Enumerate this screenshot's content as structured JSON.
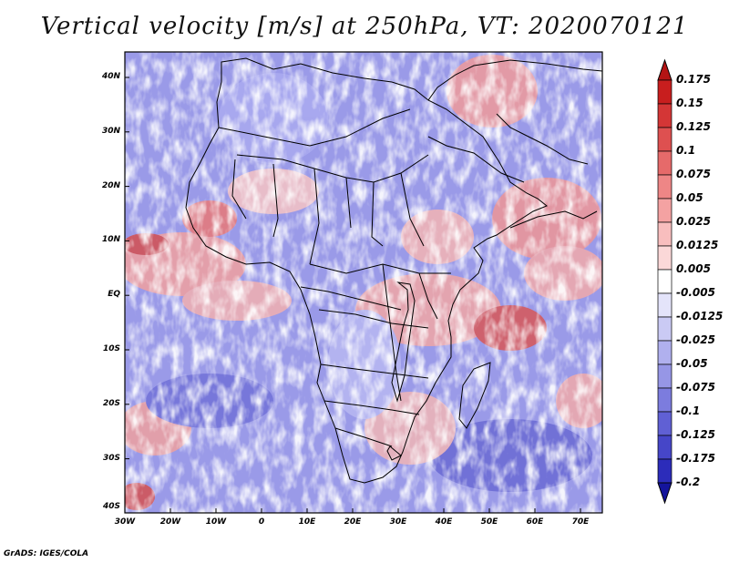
{
  "title": "Vertical velocity [m/s] at 250hPa, VT: 2020070121",
  "credit": "GrADS: IGES/COLA",
  "map": {
    "lat_ticks": [
      "40N",
      "30N",
      "20N",
      "10N",
      "EQ",
      "10S",
      "20S",
      "30S",
      "40S"
    ],
    "lon_ticks": [
      "30W",
      "20W",
      "10W",
      "0",
      "10E",
      "20E",
      "30E",
      "40E",
      "50E",
      "60E",
      "70E"
    ]
  },
  "colorbar": {
    "labels": [
      "0.175",
      "0.15",
      "0.125",
      "0.1",
      "0.075",
      "0.05",
      "0.025",
      "0.0125",
      "0.005",
      "-0.005",
      "-0.0125",
      "-0.025",
      "-0.05",
      "-0.075",
      "-0.1",
      "-0.125",
      "-0.175",
      "-0.2"
    ],
    "colors": [
      "#c81e1e",
      "#d43636",
      "#de5050",
      "#e66a6a",
      "#ee8686",
      "#f4a2a2",
      "#f8bebe",
      "#fbd8d8",
      "#ffffff",
      "#e4e4fa",
      "#cacaf4",
      "#b0b0ee",
      "#9696e6",
      "#7c7cde",
      "#6060d4",
      "#4646c8",
      "#2c2cba",
      "#1c1cab"
    ],
    "top_color": "#b41414",
    "bottom_color": "#14149c"
  }
}
